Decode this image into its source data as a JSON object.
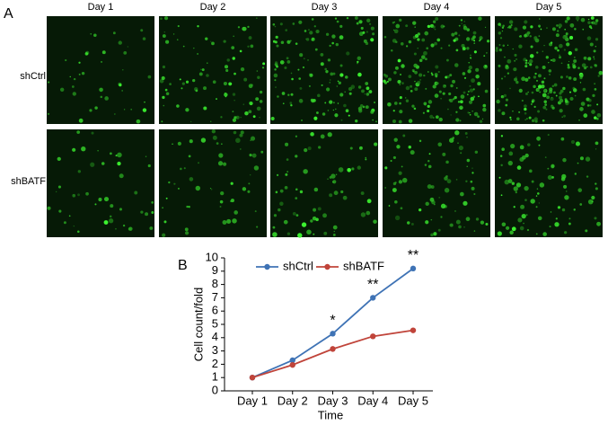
{
  "panel_a": {
    "label": "A",
    "columns": [
      "Day 1",
      "Day 2",
      "Day 3",
      "Day 4",
      "Day 5"
    ],
    "rows": [
      "shCtrl",
      "shBATF"
    ]
  },
  "chart_data": {
    "type": "line",
    "panel_label": "B",
    "x_label": "Time",
    "y_label": "Cell count/fold",
    "categories": [
      "Day 1",
      "Day 2",
      "Day 3",
      "Day 4",
      "Day 5"
    ],
    "series": [
      {
        "name": "shCtrl",
        "color": "#3f73b5",
        "values": [
          1,
          2.3,
          4.3,
          7,
          9.2
        ]
      },
      {
        "name": "shBATF",
        "color": "#c0443a",
        "values": [
          1,
          1.95,
          3.15,
          4.1,
          4.55
        ]
      }
    ],
    "annotations": [
      {
        "category": "Day 3",
        "text": "*"
      },
      {
        "category": "Day 4",
        "text": "**"
      },
      {
        "category": "Day 5",
        "text": "**"
      }
    ],
    "ylim": [
      0,
      10
    ],
    "yticks": [
      0,
      1,
      2,
      3,
      4,
      5,
      6,
      7,
      8,
      9,
      10
    ],
    "legend": "top"
  }
}
